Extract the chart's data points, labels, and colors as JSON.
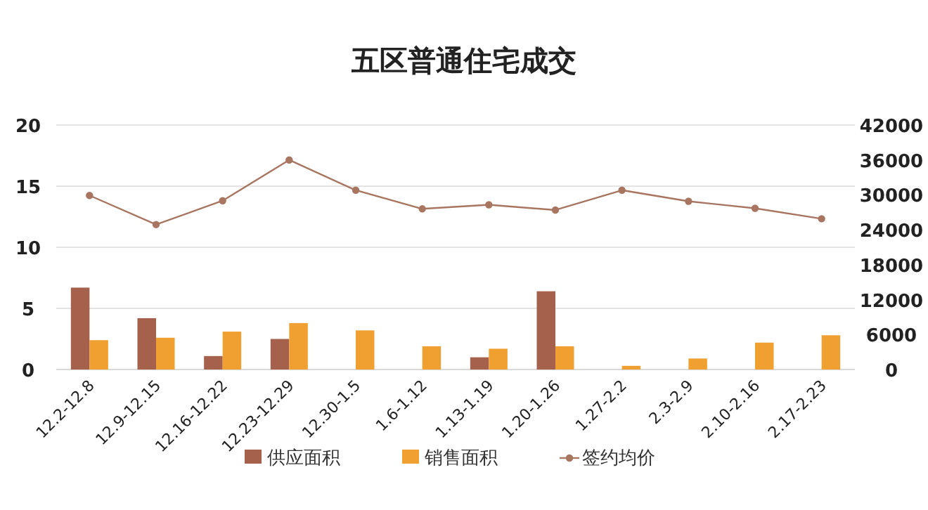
{
  "chart_data": {
    "type": "bar",
    "title": "五区普通住宅成交",
    "categories": [
      "12.2-12.8",
      "12.9-12.15",
      "12.16-12.22",
      "12.23-12.29",
      "12.30-1.5",
      "1.6-1.12",
      "1.13-1.19",
      "1.20-1.26",
      "1.27-2.2",
      "2.3-2.9",
      "2.10-2.16",
      "2.17-2.23"
    ],
    "series": [
      {
        "name": "供应面积",
        "color": "#a5614b",
        "values": [
          6.7,
          4.2,
          1.1,
          2.5,
          null,
          null,
          1.0,
          6.4,
          null,
          null,
          null,
          null
        ]
      },
      {
        "name": "销售面积",
        "color": "#f0a030",
        "values": [
          2.4,
          2.6,
          3.1,
          3.8,
          3.2,
          1.9,
          1.7,
          1.9,
          0.3,
          0.9,
          2.2,
          2.8
        ]
      },
      {
        "name": "签约均价",
        "type": "line",
        "axis": "y2",
        "marker": "circle",
        "color": "#a87561",
        "values": [
          29900,
          24900,
          29000,
          36000,
          30800,
          27600,
          28300,
          27400,
          30800,
          28900,
          27700,
          25900
        ]
      }
    ],
    "ylim": [
      0,
      20
    ],
    "yticks": [
      0,
      5,
      10,
      15,
      20
    ],
    "y2lim": [
      0,
      42000
    ],
    "y2ticks": [
      0,
      6000,
      12000,
      18000,
      24000,
      30000,
      36000,
      42000
    ],
    "grid": "y",
    "legend": "bottom"
  }
}
